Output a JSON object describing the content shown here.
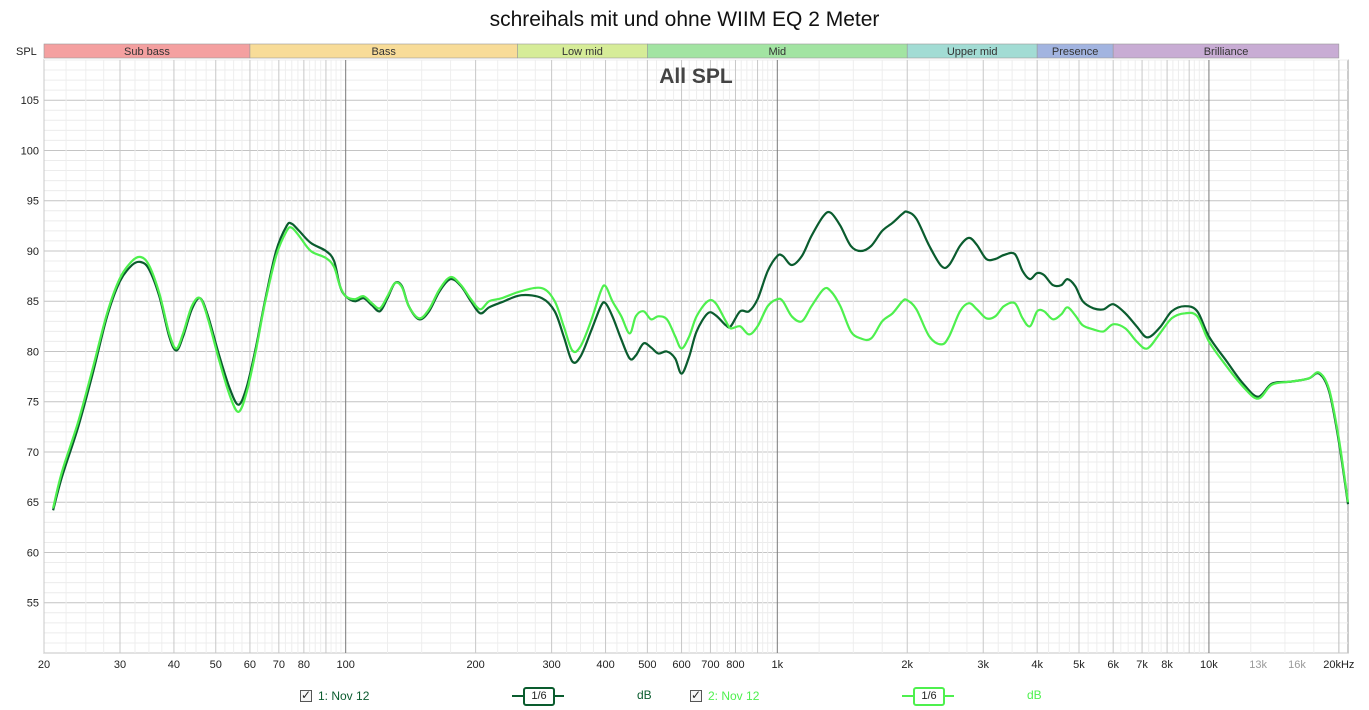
{
  "title": "schreihals mit und ohne WIIM EQ 2 Meter",
  "plot_label": "All SPL",
  "y_axis_label": "SPL",
  "bands": [
    {
      "name": "Sub bass",
      "from": 20,
      "to": 60,
      "color": "#f4a0a0"
    },
    {
      "name": "Bass",
      "from": 60,
      "to": 250,
      "color": "#f8dc98"
    },
    {
      "name": "Low mid",
      "from": 250,
      "to": 500,
      "color": "#d6ec98"
    },
    {
      "name": "Mid",
      "from": 500,
      "to": 2000,
      "color": "#a2e4a2"
    },
    {
      "name": "Upper mid",
      "from": 2000,
      "to": 4000,
      "color": "#a2dcd4"
    },
    {
      "name": "Presence",
      "from": 4000,
      "to": 6000,
      "color": "#a2b4e0"
    },
    {
      "name": "Brilliance",
      "from": 6000,
      "to": 20000,
      "color": "#c8acd4"
    }
  ],
  "x_ticks": [
    {
      "v": 20,
      "label": "20"
    },
    {
      "v": 30,
      "label": "30"
    },
    {
      "v": 40,
      "label": "40"
    },
    {
      "v": 50,
      "label": "50"
    },
    {
      "v": 60,
      "label": "60"
    },
    {
      "v": 70,
      "label": "70"
    },
    {
      "v": 80,
      "label": "80"
    },
    {
      "v": 100,
      "label": "100"
    },
    {
      "v": 200,
      "label": "200"
    },
    {
      "v": 300,
      "label": "300"
    },
    {
      "v": 400,
      "label": "400"
    },
    {
      "v": 500,
      "label": "500"
    },
    {
      "v": 600,
      "label": "600"
    },
    {
      "v": 700,
      "label": "700"
    },
    {
      "v": 800,
      "label": "800"
    },
    {
      "v": 1000,
      "label": "1k"
    },
    {
      "v": 2000,
      "label": "2k"
    },
    {
      "v": 3000,
      "label": "3k"
    },
    {
      "v": 4000,
      "label": "4k"
    },
    {
      "v": 5000,
      "label": "5k"
    },
    {
      "v": 6000,
      "label": "6k"
    },
    {
      "v": 7000,
      "label": "7k"
    },
    {
      "v": 8000,
      "label": "8k"
    },
    {
      "v": 10000,
      "label": "10k"
    },
    {
      "v": 13000,
      "label": "13k",
      "muted": true
    },
    {
      "v": 16000,
      "label": "16k",
      "muted": true
    },
    {
      "v": 20000,
      "label": "20kHz"
    }
  ],
  "y_ticks": [
    55,
    60,
    65,
    70,
    75,
    80,
    85,
    90,
    95,
    100,
    105
  ],
  "legend": {
    "series1_label": "1: Nov 12",
    "series2_label": "2: Nov 12",
    "smoothing": "1/6",
    "unit": "dB"
  },
  "chart_data": {
    "type": "line",
    "title": "schreihals mit und ohne WIIM EQ 2 Meter",
    "xlabel": "",
    "ylabel": "SPL",
    "x_scale": "log",
    "xlim": [
      20,
      21000
    ],
    "ylim": [
      50,
      109
    ],
    "grid": true,
    "legend_position": "bottom",
    "series": [
      {
        "name": "1: Nov 12",
        "color": "#0a5c2e",
        "points": [
          [
            21,
            64.2
          ],
          [
            22,
            67.5
          ],
          [
            24,
            72.5
          ],
          [
            26,
            78
          ],
          [
            28,
            83.5
          ],
          [
            30,
            87
          ],
          [
            32,
            88.6
          ],
          [
            33.5,
            88.9
          ],
          [
            35,
            88.2
          ],
          [
            37,
            85.5
          ],
          [
            39,
            81.5
          ],
          [
            40.5,
            80.1
          ],
          [
            42,
            81.5
          ],
          [
            44,
            84.2
          ],
          [
            46,
            85.3
          ],
          [
            48,
            83.5
          ],
          [
            51,
            79.5
          ],
          [
            54,
            76.2
          ],
          [
            56.5,
            74.7
          ],
          [
            59,
            76.5
          ],
          [
            62,
            80.5
          ],
          [
            65,
            85
          ],
          [
            69,
            90
          ],
          [
            73,
            92.5
          ],
          [
            75,
            92.7
          ],
          [
            78,
            92
          ],
          [
            83,
            90.8
          ],
          [
            90,
            90
          ],
          [
            94,
            89
          ],
          [
            97,
            86.5
          ],
          [
            100,
            85.5
          ],
          [
            105,
            85
          ],
          [
            110,
            85.3
          ],
          [
            115,
            84.6
          ],
          [
            120,
            84
          ],
          [
            125,
            85.3
          ],
          [
            130,
            86.8
          ],
          [
            135,
            86.5
          ],
          [
            140,
            84.5
          ],
          [
            148,
            83.2
          ],
          [
            156,
            84
          ],
          [
            165,
            86
          ],
          [
            175,
            87.2
          ],
          [
            185,
            86.5
          ],
          [
            195,
            85
          ],
          [
            205,
            83.8
          ],
          [
            215,
            84.4
          ],
          [
            230,
            84.9
          ],
          [
            255,
            85.6
          ],
          [
            285,
            85.3
          ],
          [
            305,
            84
          ],
          [
            320,
            81.5
          ],
          [
            335,
            79
          ],
          [
            350,
            79.5
          ],
          [
            370,
            82
          ],
          [
            390,
            84.5
          ],
          [
            400,
            84.8
          ],
          [
            415,
            83.5
          ],
          [
            435,
            81.2
          ],
          [
            455,
            79.3
          ],
          [
            470,
            79.6
          ],
          [
            490,
            80.8
          ],
          [
            510,
            80.4
          ],
          [
            530,
            79.8
          ],
          [
            555,
            80
          ],
          [
            580,
            79.3
          ],
          [
            600,
            77.8
          ],
          [
            625,
            79.5
          ],
          [
            650,
            82
          ],
          [
            690,
            83.8
          ],
          [
            720,
            83.6
          ],
          [
            760,
            82.6
          ],
          [
            780,
            82.5
          ],
          [
            820,
            84
          ],
          [
            860,
            84
          ],
          [
            900,
            85.2
          ],
          [
            950,
            88
          ],
          [
            1000,
            89.5
          ],
          [
            1030,
            89.5
          ],
          [
            1080,
            88.6
          ],
          [
            1140,
            89.5
          ],
          [
            1200,
            91.5
          ],
          [
            1280,
            93.5
          ],
          [
            1330,
            93.8
          ],
          [
            1400,
            92.5
          ],
          [
            1480,
            90.5
          ],
          [
            1560,
            90
          ],
          [
            1650,
            90.5
          ],
          [
            1750,
            92
          ],
          [
            1850,
            92.8
          ],
          [
            1950,
            93.7
          ],
          [
            2000,
            93.9
          ],
          [
            2100,
            93.2
          ],
          [
            2250,
            90.5
          ],
          [
            2400,
            88.5
          ],
          [
            2500,
            88.6
          ],
          [
            2650,
            90.5
          ],
          [
            2780,
            91.3
          ],
          [
            2900,
            90.6
          ],
          [
            3050,
            89.2
          ],
          [
            3200,
            89.2
          ],
          [
            3350,
            89.6
          ],
          [
            3550,
            89.7
          ],
          [
            3700,
            88
          ],
          [
            3850,
            87.2
          ],
          [
            4000,
            87.8
          ],
          [
            4150,
            87.6
          ],
          [
            4350,
            86.6
          ],
          [
            4550,
            86.6
          ],
          [
            4700,
            87.2
          ],
          [
            4900,
            86.5
          ],
          [
            5100,
            85
          ],
          [
            5400,
            84.3
          ],
          [
            5700,
            84.2
          ],
          [
            6000,
            84.7
          ],
          [
            6400,
            83.8
          ],
          [
            6800,
            82.5
          ],
          [
            7200,
            81.4
          ],
          [
            7700,
            82.4
          ],
          [
            8200,
            84
          ],
          [
            8800,
            84.5
          ],
          [
            9400,
            84
          ],
          [
            10000,
            81.5
          ],
          [
            11000,
            79
          ],
          [
            12000,
            76.8
          ],
          [
            13000,
            75.5
          ],
          [
            14000,
            76.8
          ],
          [
            15500,
            77
          ],
          [
            17000,
            77.3
          ],
          [
            18000,
            77.8
          ],
          [
            19000,
            76
          ],
          [
            20000,
            71
          ],
          [
            21000,
            64.8
          ]
        ]
      },
      {
        "name": "2: Nov 12",
        "color": "#4ef04e",
        "points": [
          [
            21,
            64.4
          ],
          [
            22,
            68
          ],
          [
            24,
            73
          ],
          [
            26,
            78.5
          ],
          [
            28,
            83.8
          ],
          [
            30,
            87.3
          ],
          [
            32,
            89
          ],
          [
            33.5,
            89.4
          ],
          [
            35,
            88.6
          ],
          [
            37,
            85.8
          ],
          [
            39,
            81.8
          ],
          [
            40.5,
            80.3
          ],
          [
            42,
            81.8
          ],
          [
            44,
            84.5
          ],
          [
            46,
            85.3
          ],
          [
            48,
            83.2
          ],
          [
            51,
            79
          ],
          [
            54,
            75.5
          ],
          [
            56.5,
            74
          ],
          [
            59,
            76
          ],
          [
            62,
            80.2
          ],
          [
            65,
            84.8
          ],
          [
            69,
            89.5
          ],
          [
            73,
            92
          ],
          [
            75,
            92.3
          ],
          [
            78,
            91.5
          ],
          [
            83,
            90
          ],
          [
            90,
            89.3
          ],
          [
            94,
            88.4
          ],
          [
            97,
            86.5
          ],
          [
            100,
            85.5
          ],
          [
            105,
            85.2
          ],
          [
            110,
            85.5
          ],
          [
            115,
            84.8
          ],
          [
            120,
            84.3
          ],
          [
            125,
            85.5
          ],
          [
            130,
            86.8
          ],
          [
            135,
            86.4
          ],
          [
            140,
            84.5
          ],
          [
            148,
            83.3
          ],
          [
            156,
            84.2
          ],
          [
            165,
            86.2
          ],
          [
            175,
            87.4
          ],
          [
            185,
            86.6
          ],
          [
            195,
            85.2
          ],
          [
            205,
            84.2
          ],
          [
            215,
            85
          ],
          [
            230,
            85.3
          ],
          [
            255,
            86
          ],
          [
            285,
            86.3
          ],
          [
            305,
            85
          ],
          [
            320,
            82.5
          ],
          [
            335,
            80.1
          ],
          [
            350,
            80.5
          ],
          [
            370,
            83
          ],
          [
            390,
            86
          ],
          [
            400,
            86.5
          ],
          [
            415,
            85
          ],
          [
            435,
            83.5
          ],
          [
            455,
            81.8
          ],
          [
            470,
            83.5
          ],
          [
            490,
            84
          ],
          [
            510,
            83.2
          ],
          [
            530,
            83.5
          ],
          [
            555,
            83.2
          ],
          [
            580,
            81.5
          ],
          [
            600,
            80.3
          ],
          [
            625,
            81.5
          ],
          [
            650,
            83.5
          ],
          [
            690,
            85
          ],
          [
            720,
            84.8
          ],
          [
            760,
            83
          ],
          [
            780,
            82.3
          ],
          [
            820,
            82.5
          ],
          [
            860,
            81.7
          ],
          [
            900,
            82.5
          ],
          [
            950,
            84.5
          ],
          [
            1000,
            85.2
          ],
          [
            1030,
            85
          ],
          [
            1080,
            83.5
          ],
          [
            1140,
            83
          ],
          [
            1200,
            84.5
          ],
          [
            1280,
            86.2
          ],
          [
            1330,
            86
          ],
          [
            1400,
            84.5
          ],
          [
            1480,
            82
          ],
          [
            1560,
            81.3
          ],
          [
            1650,
            81.3
          ],
          [
            1750,
            83
          ],
          [
            1850,
            83.8
          ],
          [
            1950,
            85
          ],
          [
            2000,
            85.1
          ],
          [
            2100,
            84.2
          ],
          [
            2250,
            81.5
          ],
          [
            2400,
            80.7
          ],
          [
            2500,
            81.5
          ],
          [
            2650,
            84
          ],
          [
            2780,
            84.8
          ],
          [
            2900,
            84.2
          ],
          [
            3050,
            83.3
          ],
          [
            3200,
            83.5
          ],
          [
            3350,
            84.5
          ],
          [
            3550,
            84.8
          ],
          [
            3700,
            83.3
          ],
          [
            3850,
            82.5
          ],
          [
            4000,
            84
          ],
          [
            4150,
            84
          ],
          [
            4350,
            83.2
          ],
          [
            4550,
            83.7
          ],
          [
            4700,
            84.4
          ],
          [
            4900,
            83.6
          ],
          [
            5100,
            82.6
          ],
          [
            5400,
            82.2
          ],
          [
            5700,
            82
          ],
          [
            6000,
            82.7
          ],
          [
            6400,
            82.3
          ],
          [
            6800,
            81
          ],
          [
            7200,
            80.3
          ],
          [
            7700,
            81.8
          ],
          [
            8200,
            83.3
          ],
          [
            8800,
            83.8
          ],
          [
            9400,
            83.5
          ],
          [
            10000,
            81
          ],
          [
            11000,
            78.5
          ],
          [
            12000,
            76.5
          ],
          [
            13000,
            75.3
          ],
          [
            14000,
            76.7
          ],
          [
            15500,
            77
          ],
          [
            17000,
            77.3
          ],
          [
            18000,
            77.9
          ],
          [
            19000,
            76.2
          ],
          [
            20000,
            71.3
          ],
          [
            21000,
            65
          ]
        ]
      }
    ]
  }
}
